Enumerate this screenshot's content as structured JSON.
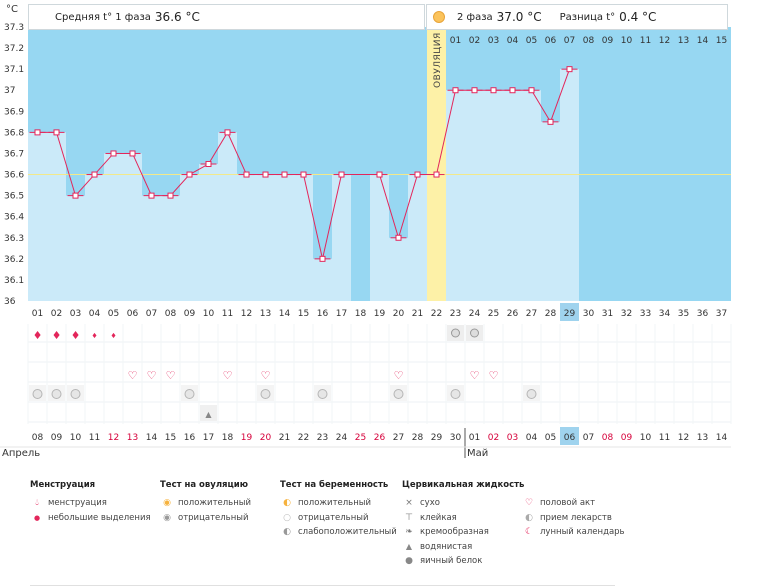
{
  "header": {
    "unit": "°C",
    "phase1_label": "Средняя t° 1 фаза",
    "phase1_value": "36.6 °C",
    "phase2_label": "2 фаза",
    "phase2_value": "37.0 °C",
    "diff_label": "Разница t°",
    "diff_value": "0.4 °C"
  },
  "colors": {
    "sky": "#97d7f2",
    "bar": "#cbeaf9",
    "line": "#e3265b",
    "ovulation": "#fdf1a7",
    "today": "#9fd3ee",
    "red_date": "#d6003a"
  },
  "chart_data": {
    "type": "line",
    "ylim": [
      36,
      37.3
    ],
    "yticks": [
      "37.3",
      "37.2",
      "37.1",
      "37",
      "36.9",
      "36.8",
      "36.7",
      "36.6",
      "36.5",
      "36.4",
      "36.3",
      "36.2",
      "36.1",
      "36"
    ],
    "cycle_days": [
      "01",
      "02",
      "03",
      "04",
      "05",
      "06",
      "07",
      "08",
      "09",
      "10",
      "11",
      "12",
      "13",
      "14",
      "15",
      "16",
      "17",
      "18",
      "19",
      "20",
      "21",
      "22",
      "23",
      "24",
      "25",
      "26",
      "27",
      "28",
      "29",
      "30",
      "31",
      "32",
      "33",
      "34",
      "35",
      "36",
      "37"
    ],
    "temperatures": [
      36.8,
      36.8,
      36.5,
      36.6,
      36.7,
      36.7,
      36.5,
      36.5,
      36.6,
      36.65,
      36.8,
      36.6,
      36.6,
      36.6,
      36.6,
      36.2,
      36.6,
      null,
      36.6,
      36.3,
      36.6,
      36.6,
      37.0,
      37.0,
      37.0,
      37.0,
      37.0,
      36.85,
      37.1,
      null,
      null,
      null,
      null,
      null,
      null,
      null,
      null
    ],
    "coverline": 36.6,
    "ovulation_day_index": 21,
    "ovulation_label": "ОВУЛЯЦИЯ",
    "phase2_days": [
      "01",
      "02",
      "03",
      "04",
      "05",
      "06",
      "07",
      "08",
      "09",
      "10",
      "11",
      "12",
      "13",
      "14",
      "15"
    ],
    "today_index": 28,
    "dates": [
      "08",
      "09",
      "10",
      "11",
      "12",
      "13",
      "14",
      "15",
      "16",
      "17",
      "18",
      "19",
      "20",
      "21",
      "22",
      "23",
      "24",
      "25",
      "26",
      "27",
      "28",
      "29",
      "30",
      "01",
      "02",
      "03",
      "04",
      "05",
      "06",
      "07",
      "08",
      "09",
      "10",
      "11",
      "12",
      "13",
      "14"
    ],
    "red_date_indices": [
      4,
      5,
      11,
      12,
      17,
      18,
      24,
      25,
      30,
      31
    ],
    "months": [
      {
        "label": "Апрель",
        "index": 0
      },
      {
        "label": "Май",
        "index": 23
      }
    ],
    "symbol_rows": {
      "menstruation": {
        "big": [
          0,
          1,
          2
        ],
        "small": [
          3,
          4
        ]
      },
      "ovulation_test_negative": [
        22,
        23
      ],
      "intercourse": [
        5,
        6,
        7,
        10,
        12,
        19,
        23,
        24
      ],
      "medication": [
        0,
        1,
        2,
        8,
        12,
        15,
        19,
        22,
        26
      ],
      "cervical_watery": [
        9
      ]
    }
  },
  "legend": {
    "menstruation": {
      "title": "Менструация",
      "items": [
        "менструация",
        "небольшие выделения"
      ]
    },
    "ovulation_test": {
      "title": "Тест на овуляцию",
      "items": [
        "положительный",
        "отрицательный"
      ]
    },
    "pregnancy_test": {
      "title": "Тест на беременность",
      "items": [
        "положительный",
        "отрицательный",
        "слабоположительный"
      ]
    },
    "cervical": {
      "title": "Цервикальная жидкость",
      "items": [
        "сухо",
        "клейкая",
        "кремообразная",
        "водянистая",
        "яичный белок"
      ]
    },
    "other": {
      "items": [
        "половой акт",
        "прием лекарств",
        "лунный календарь"
      ]
    }
  },
  "icons": [
    "drop-icon",
    "small-drop-icon",
    "sun-icon",
    "heart-icon",
    "pill-icon",
    "moon-icon",
    "cross-icon",
    "sticky-icon",
    "creamy-icon",
    "watery-icon",
    "eggwhite-icon",
    "test-icon"
  ]
}
